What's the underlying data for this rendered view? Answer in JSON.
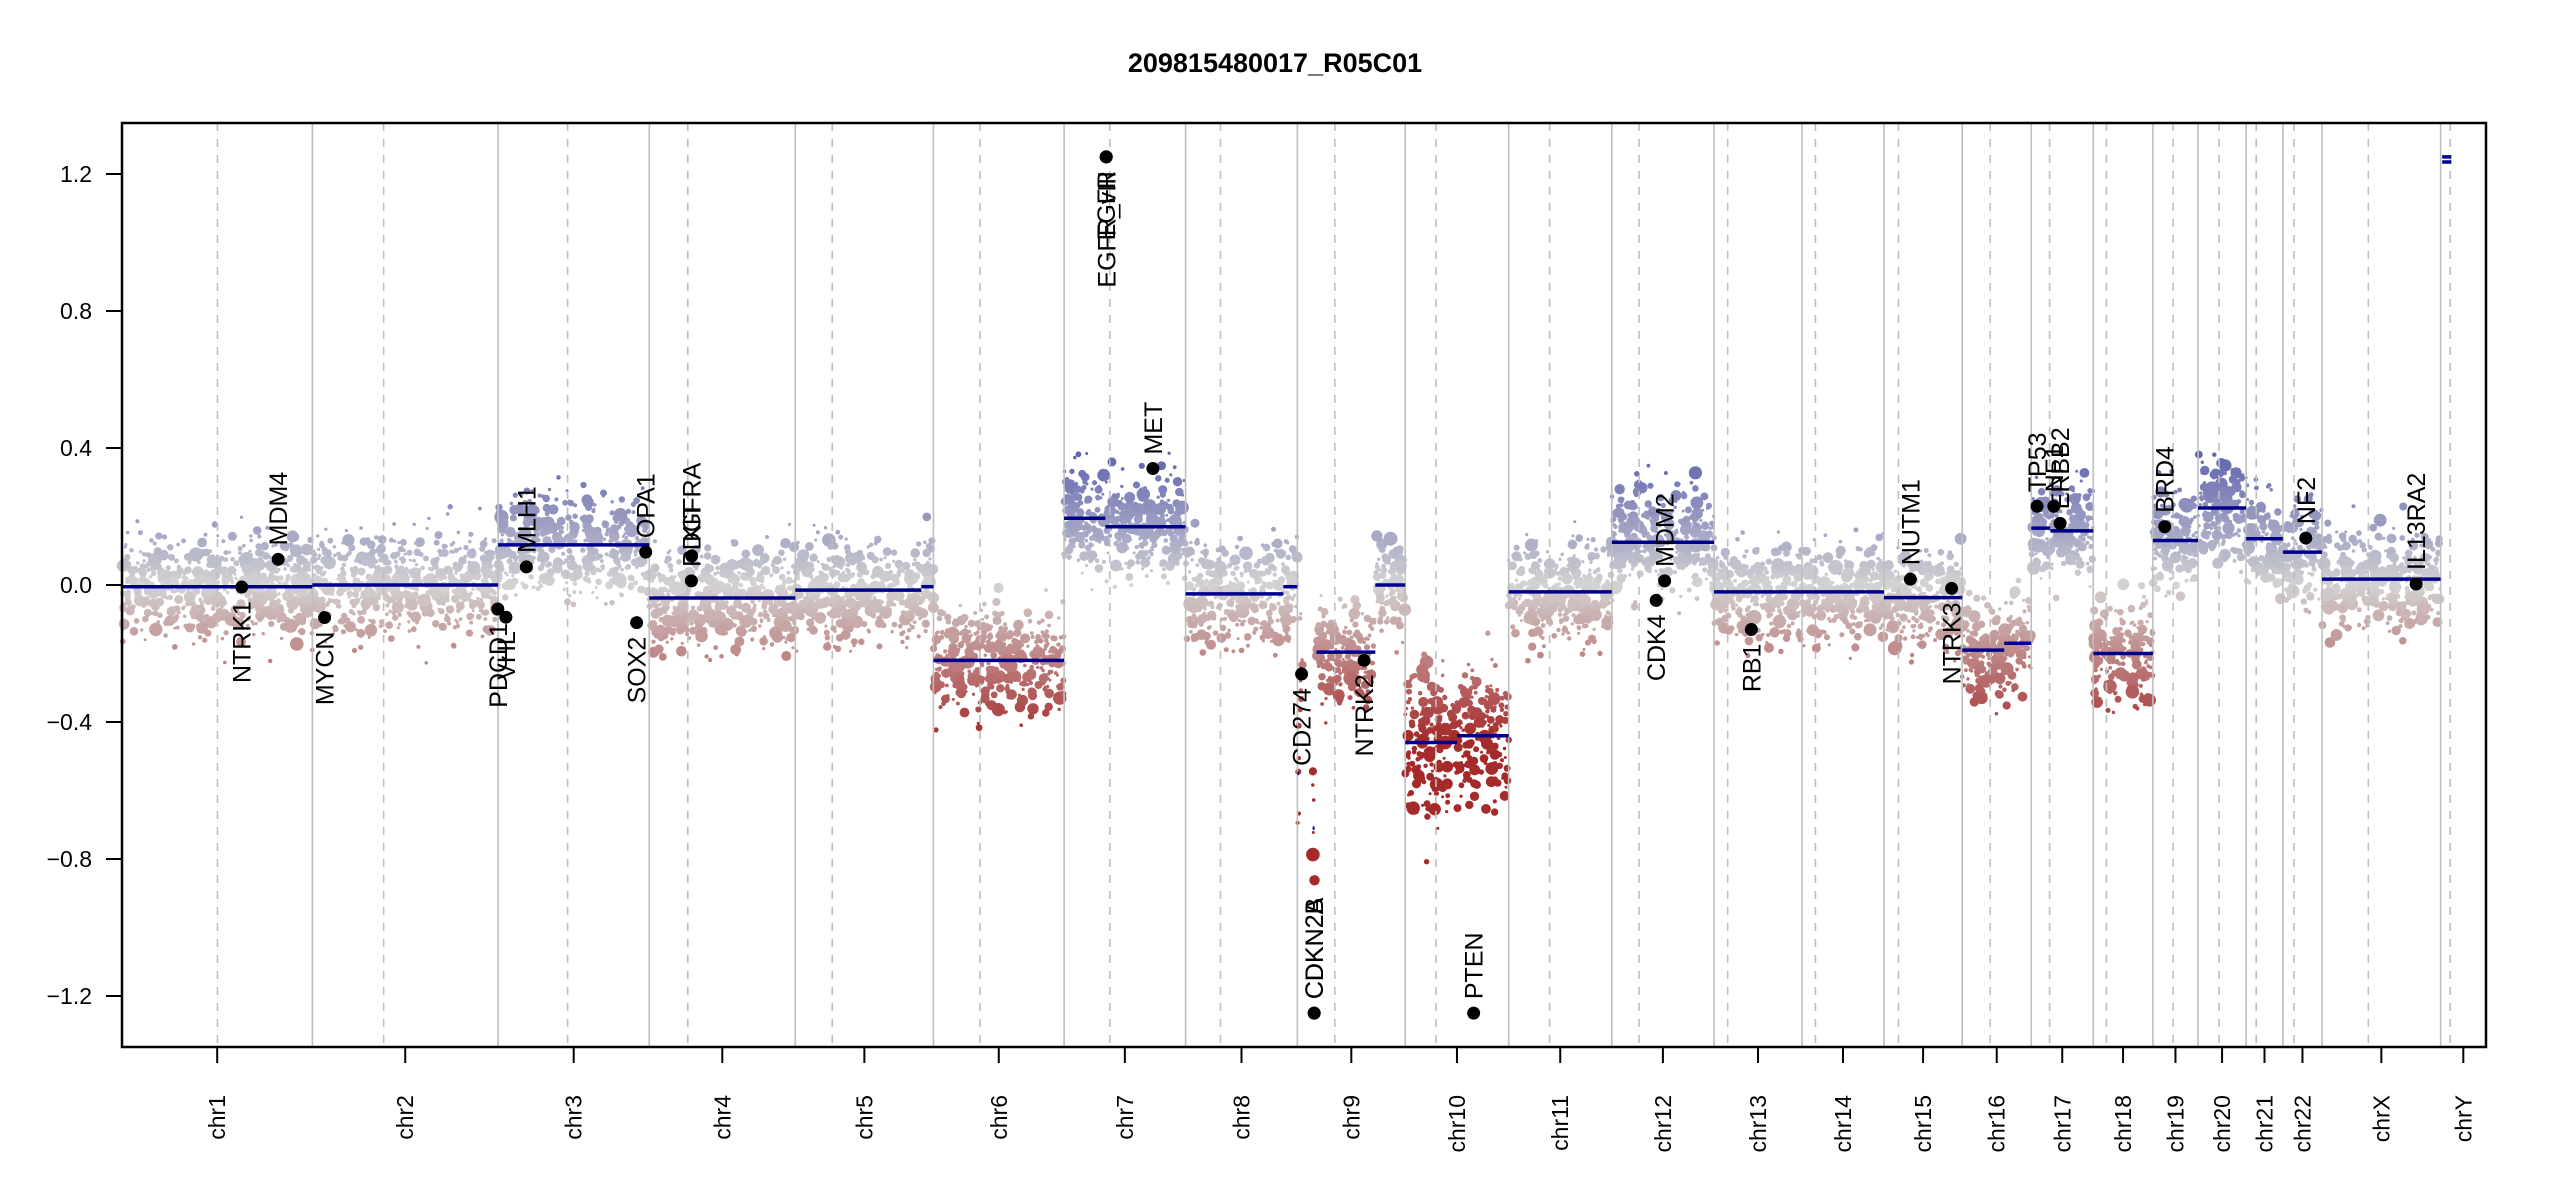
{
  "chart_data": {
    "type": "scatter",
    "title": "209815480017_R05C01",
    "xlabel": "",
    "ylabel": "",
    "ylim": [
      -1.35,
      1.35
    ],
    "yticks": [
      -1.2,
      -0.8,
      -0.4,
      0.0,
      0.4,
      0.8,
      1.2
    ],
    "ytick_labels": [
      "−1.2",
      "−0.8",
      "−0.4",
      "0.0",
      "0.4",
      "0.8",
      "1.2"
    ],
    "x_units": "Mb (genome position, chromosomes concatenated)",
    "grid": false,
    "colors": {
      "segment": "#00008b",
      "gain": "#4b4fa8",
      "neutral": "#d3d3d3",
      "loss": "#a52a2a",
      "chrom_boundary": "#bebebe",
      "centromere": "#bebebe",
      "gene_point": "#000000"
    },
    "chromosomes": [
      {
        "name": "chr1",
        "length": 249.3,
        "centromere": 125.0
      },
      {
        "name": "chr2",
        "length": 243.2,
        "centromere": 93.3
      },
      {
        "name": "chr3",
        "length": 198.0,
        "centromere": 91.0
      },
      {
        "name": "chr4",
        "length": 191.2,
        "centromere": 50.4
      },
      {
        "name": "chr5",
        "length": 180.9,
        "centromere": 48.4
      },
      {
        "name": "chr6",
        "length": 171.1,
        "centromere": 61.0
      },
      {
        "name": "chr7",
        "length": 159.1,
        "centromere": 59.9
      },
      {
        "name": "chr8",
        "length": 146.4,
        "centromere": 45.6
      },
      {
        "name": "chr9",
        "length": 141.2,
        "centromere": 49.0
      },
      {
        "name": "chr10",
        "length": 135.5,
        "centromere": 40.2
      },
      {
        "name": "chr11",
        "length": 135.0,
        "centromere": 53.7
      },
      {
        "name": "chr12",
        "length": 133.9,
        "centromere": 35.8
      },
      {
        "name": "chr13",
        "length": 115.2,
        "centromere": 17.9
      },
      {
        "name": "chr14",
        "length": 107.3,
        "centromere": 17.6
      },
      {
        "name": "chr15",
        "length": 102.5,
        "centromere": 19.0
      },
      {
        "name": "chr16",
        "length": 90.4,
        "centromere": 36.6
      },
      {
        "name": "chr17",
        "length": 81.2,
        "centromere": 24.0
      },
      {
        "name": "chr18",
        "length": 78.1,
        "centromere": 17.2
      },
      {
        "name": "chr19",
        "length": 59.1,
        "centromere": 26.5
      },
      {
        "name": "chr20",
        "length": 63.0,
        "centromere": 27.5
      },
      {
        "name": "chr21",
        "length": 48.1,
        "centromere": 13.2
      },
      {
        "name": "chr22",
        "length": 51.3,
        "centromere": 14.7
      },
      {
        "name": "chrX",
        "length": 155.3,
        "centromere": 60.6
      },
      {
        "name": "chrY",
        "length": 59.4,
        "centromere": 12.5
      }
    ],
    "segments": [
      {
        "chr": "chr1",
        "start": 0,
        "end": 249.3,
        "value": -0.005
      },
      {
        "chr": "chr2",
        "start": 0,
        "end": 243.2,
        "value": 0.0
      },
      {
        "chr": "chr3",
        "start": 0,
        "end": 198.0,
        "value": 0.117
      },
      {
        "chr": "chr4",
        "start": 0,
        "end": 191.2,
        "value": -0.038
      },
      {
        "chr": "chr5",
        "start": 0,
        "end": 165.0,
        "value": -0.015
      },
      {
        "chr": "chr5",
        "start": 165.0,
        "end": 180.9,
        "value": -0.005
      },
      {
        "chr": "chr6",
        "start": 0,
        "end": 171.1,
        "value": -0.22
      },
      {
        "chr": "chr7",
        "start": 0,
        "end": 54.0,
        "value": 0.195
      },
      {
        "chr": "chr7",
        "start": 54.0,
        "end": 159.1,
        "value": 0.17
      },
      {
        "chr": "chr8",
        "start": 0,
        "end": 128.0,
        "value": -0.026
      },
      {
        "chr": "chr8",
        "start": 128.0,
        "end": 146.4,
        "value": -0.005
      },
      {
        "chr": "chr9",
        "start": 0,
        "end": 2.0,
        "value": -0.55
      },
      {
        "chr": "chr9",
        "start": 3.0,
        "end": 7.0,
        "value": -0.245
      },
      {
        "chr": "chr9",
        "start": 20.0,
        "end": 22.5,
        "value": -0.71
      },
      {
        "chr": "chr9",
        "start": 25.0,
        "end": 102.0,
        "value": -0.196
      },
      {
        "chr": "chr9",
        "start": 102.0,
        "end": 141.2,
        "value": 0.0
      },
      {
        "chr": "chr10",
        "start": 0,
        "end": 68.0,
        "value": -0.46
      },
      {
        "chr": "chr10",
        "start": 68.0,
        "end": 135.5,
        "value": -0.44
      },
      {
        "chr": "chr11",
        "start": 0,
        "end": 135.0,
        "value": -0.02
      },
      {
        "chr": "chr12",
        "start": 0,
        "end": 133.9,
        "value": 0.125
      },
      {
        "chr": "chr13",
        "start": 0,
        "end": 115.2,
        "value": -0.02
      },
      {
        "chr": "chr14",
        "start": 0,
        "end": 107.3,
        "value": -0.02
      },
      {
        "chr": "chr15",
        "start": 0,
        "end": 102.5,
        "value": -0.037
      },
      {
        "chr": "chr16",
        "start": 0,
        "end": 55.0,
        "value": -0.19
      },
      {
        "chr": "chr16",
        "start": 55.0,
        "end": 90.4,
        "value": -0.17
      },
      {
        "chr": "chr17",
        "start": 0,
        "end": 25.0,
        "value": 0.166
      },
      {
        "chr": "chr17",
        "start": 25.0,
        "end": 81.2,
        "value": 0.158
      },
      {
        "chr": "chr18",
        "start": 0,
        "end": 78.1,
        "value": -0.2
      },
      {
        "chr": "chr19",
        "start": 0,
        "end": 59.1,
        "value": 0.13
      },
      {
        "chr": "chr20",
        "start": 0,
        "end": 63.0,
        "value": 0.225
      },
      {
        "chr": "chr21",
        "start": 0,
        "end": 48.1,
        "value": 0.135
      },
      {
        "chr": "chr22",
        "start": 0,
        "end": 51.3,
        "value": 0.096
      },
      {
        "chr": "chrX",
        "start": 0,
        "end": 155.3,
        "value": 0.017
      },
      {
        "chr": "chrY",
        "start": 2.0,
        "end": 14.0,
        "value": 1.235
      },
      {
        "chr": "chrY",
        "start": 2.0,
        "end": 14.0,
        "value": 1.25
      }
    ],
    "genes": [
      {
        "name": "NTRK1",
        "chr": "chr1",
        "pos": 156.8,
        "value": -0.006,
        "label_side": "below"
      },
      {
        "name": "MDM4",
        "chr": "chr1",
        "pos": 204.5,
        "value": 0.075,
        "label_side": "above"
      },
      {
        "name": "MYCN",
        "chr": "chr2",
        "pos": 16.0,
        "value": -0.095,
        "label_side": "below"
      },
      {
        "name": "PDCD1",
        "chr": "chr2",
        "pos": 242.8,
        "value": -0.07,
        "label_side": "below"
      },
      {
        "name": "VHL",
        "chr": "chr3",
        "pos": 10.2,
        "value": -0.094,
        "label_side": "below"
      },
      {
        "name": "MLH1",
        "chr": "chr3",
        "pos": 37.0,
        "value": 0.053,
        "label_side": "above"
      },
      {
        "name": "SOX2",
        "chr": "chr3",
        "pos": 181.4,
        "value": -0.11,
        "label_side": "below"
      },
      {
        "name": "OPA1",
        "chr": "chr3",
        "pos": 193.3,
        "value": 0.096,
        "label_side": "above"
      },
      {
        "name": "PDGFRA",
        "chr": "chr4",
        "pos": 55.1,
        "value": 0.012,
        "label_side": "above"
      },
      {
        "name": "KIT",
        "chr": "chr4",
        "pos": 55.5,
        "value": 0.085,
        "label_side": "above"
      },
      {
        "name": "EGFR",
        "chr": "chr7",
        "pos": 55.1,
        "value": 1.25,
        "label_side": "below"
      },
      {
        "name": "EGFR_vIII",
        "chr": "chr7",
        "pos": 55.2,
        "value": 1.25,
        "label_side": "below"
      },
      {
        "name": "MET",
        "chr": "chr7",
        "pos": 116.3,
        "value": 0.34,
        "label_side": "above"
      },
      {
        "name": "CD274",
        "chr": "chr9",
        "pos": 5.5,
        "value": -0.26,
        "label_side": "below"
      },
      {
        "name": "CDKN2A",
        "chr": "chr9",
        "pos": 21.97,
        "value": -1.25,
        "label_side": "above"
      },
      {
        "name": "CDKN2B",
        "chr": "chr9",
        "pos": 22.0,
        "value": -1.25,
        "label_side": "above"
      },
      {
        "name": "NTRK2",
        "chr": "chr9",
        "pos": 87.3,
        "value": -0.22,
        "label_side": "below"
      },
      {
        "name": "PTEN",
        "chr": "chr10",
        "pos": 89.6,
        "value": -1.25,
        "label_side": "above"
      },
      {
        "name": "CDK4",
        "chr": "chr12",
        "pos": 58.1,
        "value": -0.045,
        "label_side": "below"
      },
      {
        "name": "MDM2",
        "chr": "chr12",
        "pos": 69.2,
        "value": 0.012,
        "label_side": "above"
      },
      {
        "name": "RB1",
        "chr": "chr13",
        "pos": 48.9,
        "value": -0.13,
        "label_side": "below"
      },
      {
        "name": "NUTM1",
        "chr": "chr15",
        "pos": 34.6,
        "value": 0.017,
        "label_side": "above"
      },
      {
        "name": "NTRK3",
        "chr": "chr15",
        "pos": 88.6,
        "value": -0.01,
        "label_side": "below"
      },
      {
        "name": "TP53",
        "chr": "chr17",
        "pos": 7.6,
        "value": 0.23,
        "label_side": "above"
      },
      {
        "name": "NF1",
        "chr": "chr17",
        "pos": 29.5,
        "value": 0.23,
        "label_side": "above"
      },
      {
        "name": "ERBB2",
        "chr": "chr17",
        "pos": 37.8,
        "value": 0.18,
        "label_side": "above"
      },
      {
        "name": "BRD4",
        "chr": "chr19",
        "pos": 15.4,
        "value": 0.17,
        "label_side": "above"
      },
      {
        "name": "NF2",
        "chr": "chr22",
        "pos": 30.0,
        "value": 0.137,
        "label_side": "above"
      },
      {
        "name": "IL13RA2",
        "chr": "chrX",
        "pos": 123.2,
        "value": 0.003,
        "label_side": "above"
      }
    ]
  }
}
